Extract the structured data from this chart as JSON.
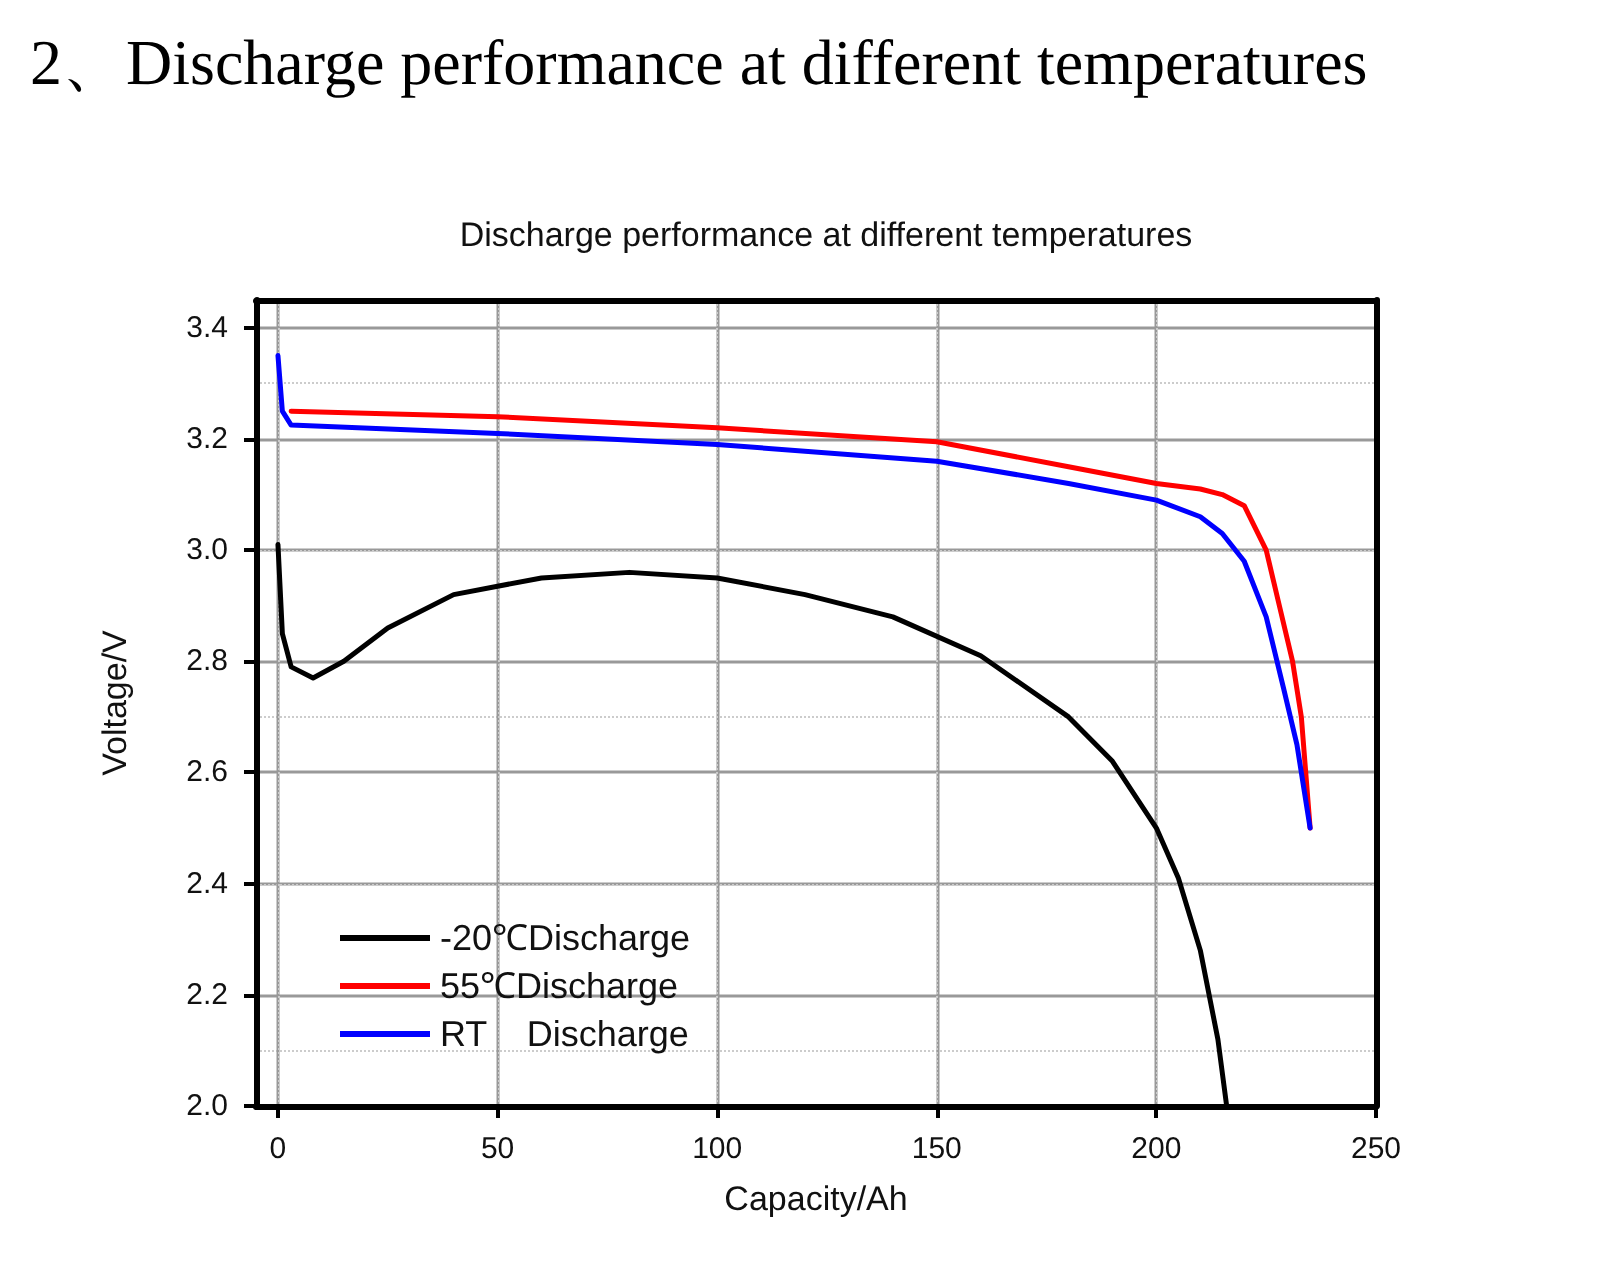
{
  "chart_data": {
    "type": "line",
    "title": "2、Discharge performance at different temperatures",
    "subtitle": "Discharge performance at different temperatures",
    "xlabel": "Capacity/Ah",
    "ylabel": "Voltage/V",
    "xlim": [
      -5,
      250
    ],
    "xticks": [
      0,
      50,
      100,
      150,
      200,
      250
    ],
    "ylim": [
      2.0,
      3.45
    ],
    "yticks": [
      {
        "value": 2.0,
        "label": "2.0"
      },
      {
        "value": 2.2,
        "label": "2.2"
      },
      {
        "value": 2.4,
        "label": "2.4"
      },
      {
        "value": 2.6,
        "label": "2.6"
      },
      {
        "value": 2.8,
        "label": "2.8"
      },
      {
        "value": 3.0,
        "label": "3.0"
      },
      {
        "value": 3.2,
        "label": "3.2"
      },
      {
        "value": 3.4,
        "label": "3.4"
      }
    ],
    "grid": true,
    "legend": "bottom left",
    "marker": "none",
    "line_style": "solid",
    "series": [
      {
        "name": "-20℃Discharge",
        "color": "#000000",
        "x": [
          0,
          1,
          3,
          8,
          15,
          25,
          40,
          60,
          80,
          100,
          120,
          140,
          160,
          180,
          190,
          200,
          205,
          210,
          214,
          216
        ],
        "values": [
          3.01,
          2.85,
          2.79,
          2.77,
          2.8,
          2.86,
          2.92,
          2.95,
          2.96,
          2.95,
          2.92,
          2.88,
          2.81,
          2.7,
          2.62,
          2.5,
          2.41,
          2.28,
          2.12,
          2.0
        ]
      },
      {
        "name": "55℃Discharge",
        "color": "#ff0000",
        "x": [
          3,
          50,
          100,
          150,
          180,
          200,
          210,
          215,
          220,
          225,
          228,
          231,
          233,
          235
        ],
        "values": [
          3.25,
          3.24,
          3.22,
          3.195,
          3.15,
          3.12,
          3.11,
          3.1,
          3.08,
          3.0,
          2.9,
          2.8,
          2.7,
          2.5
        ]
      },
      {
        "name": "RT    Discharge",
        "color": "#0000ff",
        "x": [
          0,
          1,
          3,
          50,
          100,
          150,
          180,
          200,
          210,
          215,
          220,
          225,
          229,
          232,
          235
        ],
        "values": [
          3.35,
          3.25,
          3.225,
          3.21,
          3.19,
          3.16,
          3.12,
          3.09,
          3.06,
          3.03,
          2.98,
          2.88,
          2.75,
          2.65,
          2.5
        ]
      }
    ]
  }
}
